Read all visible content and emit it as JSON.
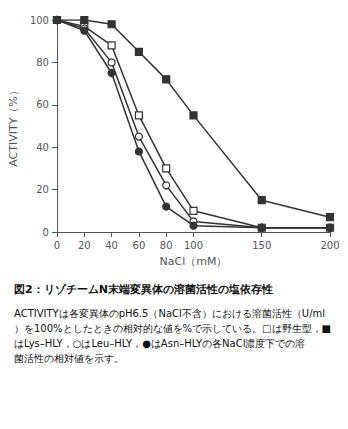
{
  "chart_data": {
    "type": "line",
    "title": "図2：リゾチームN末端変異体の溶菌活性の塩依存性",
    "subtitle": "ACTIVITYは各変異体のpH6.5（NaCl不含）における溶菌活性（U/ml）を100%としたときの相対的な値を%で示している。□は野生型，■はLys–HLY，○はLeu–HLY，●はAsn–HLYの各NaCl濃度下での溶菌活性の相対値を示す。",
    "x_label": "NaCl（mM）",
    "y_label": "ACTIVITY（%）",
    "x": [
      0,
      20,
      40,
      60,
      80,
      100,
      150,
      200
    ],
    "series": [
      {
        "values": [
          100,
          97,
          88,
          55,
          30,
          10,
          2,
          2
        ],
        "marker": "square-open",
        "color": "#333333"
      },
      {
        "values": [
          100,
          100,
          98,
          85,
          72,
          55,
          15,
          7
        ],
        "marker": "square",
        "color": "#333333"
      },
      {
        "values": [
          100,
          96,
          80,
          45,
          22,
          5,
          2,
          2
        ],
        "marker": "circle-open",
        "color": "#333333"
      },
      {
        "values": [
          100,
          95,
          75,
          38,
          12,
          3,
          2,
          2
        ],
        "marker": "circle",
        "color": "#333333"
      }
    ],
    "xlim": [
      0,
      200
    ],
    "ylim": [
      0,
      100
    ],
    "xticks": [
      0,
      20,
      40,
      60,
      80,
      100,
      150,
      200
    ],
    "yticks": [
      0,
      20,
      40,
      60,
      80,
      100
    ],
    "grid": false
  }
}
